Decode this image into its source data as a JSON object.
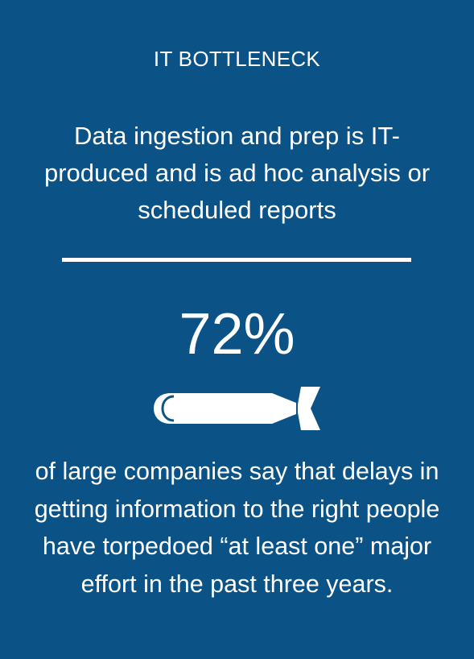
{
  "title": "IT BOTTLENECK",
  "subtitle": "Data ingestion and prep is IT-produced and is ad hoc analysis or scheduled reports",
  "stat": "72%",
  "body": "of large companies say that delays in getting information to the right people have torpedoed “at least one” major effort in the past three years.",
  "icon": "torpedo-icon",
  "colors": {
    "background": "#0b5287",
    "foreground": "#ffffff"
  }
}
